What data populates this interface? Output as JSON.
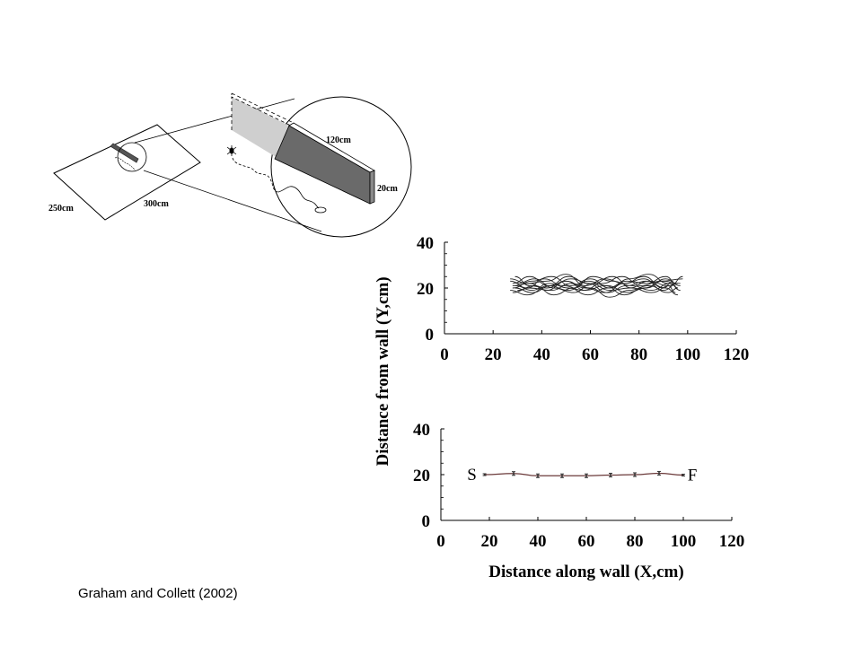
{
  "diagram": {
    "arena_width_label": "250cm",
    "arena_length_label": "300cm",
    "wall_length_label": "120cm",
    "wall_height_label": "20cm"
  },
  "citation": "Graham and Collett (2002)",
  "shared_ylabel": "Distance from wall (Y,cm)",
  "chart_data": [
    {
      "type": "line",
      "title": "",
      "xlabel": "",
      "ylabel": "Distance from wall (Y,cm)",
      "xlim": [
        0,
        120
      ],
      "ylim": [
        0,
        40
      ],
      "xticks": [
        "0",
        "20",
        "40",
        "60",
        "80",
        "100",
        "120"
      ],
      "yticks": [
        "0",
        "20",
        "40"
      ],
      "grid": false,
      "series_note": "many overlapping ant trajectories",
      "series": [
        {
          "x": [
            28,
            35,
            42,
            50,
            58,
            66,
            74,
            82,
            90,
            96
          ],
          "y": [
            21,
            22,
            19,
            23,
            20,
            18,
            22,
            24,
            19,
            22
          ]
        },
        {
          "x": [
            27,
            34,
            41,
            49,
            57,
            65,
            73,
            81,
            89,
            98
          ],
          "y": [
            23,
            20,
            24,
            21,
            19,
            22,
            25,
            21,
            23,
            24
          ]
        },
        {
          "x": [
            29,
            36,
            44,
            52,
            60,
            68,
            76,
            84,
            92,
            95
          ],
          "y": [
            20,
            18,
            21,
            24,
            22,
            19,
            20,
            23,
            21,
            18
          ]
        },
        {
          "x": [
            28,
            35,
            43,
            51,
            59,
            67,
            75,
            83,
            91,
            97
          ],
          "y": [
            22,
            25,
            21,
            19,
            23,
            21,
            18,
            20,
            24,
            21
          ]
        },
        {
          "x": [
            30,
            37,
            45,
            53,
            61,
            69,
            77,
            85,
            93,
            96
          ],
          "y": [
            19,
            21,
            17,
            20,
            25,
            23,
            21,
            19,
            22,
            20
          ]
        },
        {
          "x": [
            27,
            34,
            42,
            50,
            58,
            66,
            74,
            82,
            90,
            94
          ],
          "y": [
            24,
            22,
            23,
            26,
            21,
            24,
            22,
            25,
            20,
            23
          ]
        },
        {
          "x": [
            29,
            36,
            43,
            51,
            59,
            67,
            75,
            83,
            91,
            97
          ],
          "y": [
            21,
            19,
            22,
            20,
            17,
            20,
            23,
            22,
            25,
            19
          ]
        },
        {
          "x": [
            28,
            35,
            44,
            52,
            60,
            68,
            76,
            84,
            92,
            96
          ],
          "y": [
            18,
            20,
            19,
            22,
            20,
            16,
            19,
            21,
            18,
            20
          ]
        },
        {
          "x": [
            30,
            37,
            45,
            53,
            61,
            69,
            77,
            85,
            93,
            98
          ],
          "y": [
            22,
            24,
            20,
            18,
            22,
            25,
            20,
            18,
            21,
            25
          ]
        },
        {
          "x": [
            28,
            36,
            44,
            52,
            60,
            68,
            76,
            84,
            92,
            95
          ],
          "y": [
            20,
            23,
            25,
            21,
            24,
            20,
            24,
            26,
            22,
            21
          ]
        },
        {
          "x": [
            29,
            35,
            42,
            50,
            58,
            66,
            74,
            82,
            90,
            97
          ],
          "y": [
            25,
            21,
            20,
            23,
            19,
            21,
            17,
            20,
            23,
            22
          ]
        },
        {
          "x": [
            27,
            34,
            43,
            51,
            59,
            67,
            75,
            83,
            91,
            96
          ],
          "y": [
            19,
            17,
            21,
            25,
            22,
            18,
            21,
            23,
            20,
            17
          ]
        }
      ]
    },
    {
      "type": "line",
      "title": "",
      "xlabel": "Distance along wall (X,cm)",
      "ylabel": "Distance from wall (Y,cm)",
      "xlim": [
        0,
        120
      ],
      "ylim": [
        0,
        40
      ],
      "xticks": [
        "0",
        "20",
        "40",
        "60",
        "80",
        "100",
        "120"
      ],
      "yticks": [
        "0",
        "20",
        "40"
      ],
      "grid": false,
      "start_label": "S",
      "finish_label": "F",
      "series": [
        {
          "x": [
            18,
            30,
            40,
            50,
            60,
            70,
            80,
            90,
            100
          ],
          "y": [
            20,
            20.5,
            19.5,
            19.5,
            19.5,
            19.8,
            20,
            20.6,
            19.8
          ],
          "err": [
            0.4,
            0.8,
            0.8,
            0.8,
            0.8,
            0.8,
            0.8,
            0.8,
            0.4
          ],
          "color": "#6b3a3a"
        }
      ]
    }
  ]
}
